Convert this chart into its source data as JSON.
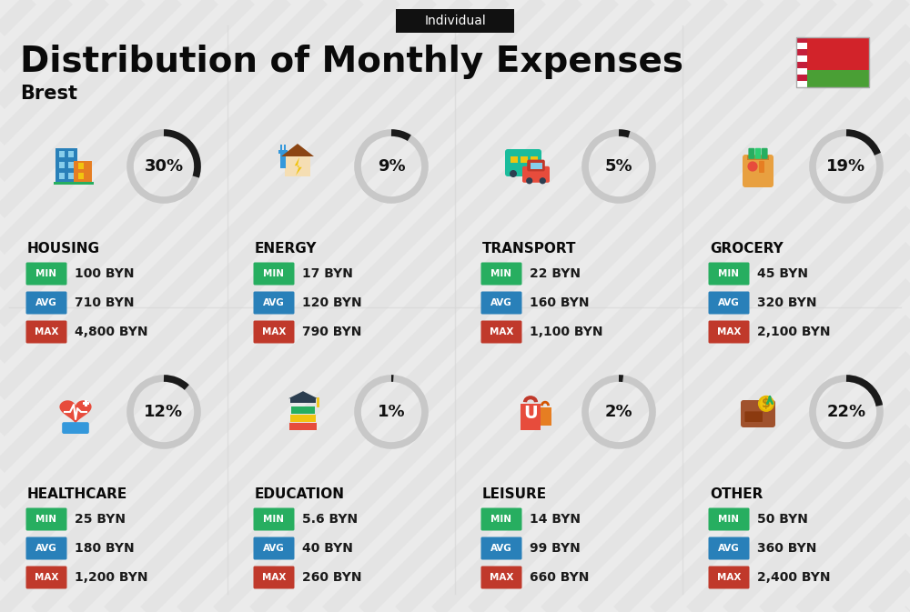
{
  "title": "Distribution of Monthly Expenses",
  "subtitle": "Brest",
  "badge": "Individual",
  "bg_color": "#ebebeb",
  "stripe_color": "#e0e0e0",
  "categories": [
    {
      "name": "HOUSING",
      "percent": 30,
      "min": "100 BYN",
      "avg": "710 BYN",
      "max": "4,800 BYN",
      "col": 0,
      "row": 0
    },
    {
      "name": "ENERGY",
      "percent": 9,
      "min": "17 BYN",
      "avg": "120 BYN",
      "max": "790 BYN",
      "col": 1,
      "row": 0
    },
    {
      "name": "TRANSPORT",
      "percent": 5,
      "min": "22 BYN",
      "avg": "160 BYN",
      "max": "1,100 BYN",
      "col": 2,
      "row": 0
    },
    {
      "name": "GROCERY",
      "percent": 19,
      "min": "45 BYN",
      "avg": "320 BYN",
      "max": "2,100 BYN",
      "col": 3,
      "row": 0
    },
    {
      "name": "HEALTHCARE",
      "percent": 12,
      "min": "25 BYN",
      "avg": "180 BYN",
      "max": "1,200 BYN",
      "col": 0,
      "row": 1
    },
    {
      "name": "EDUCATION",
      "percent": 1,
      "min": "5.6 BYN",
      "avg": "40 BYN",
      "max": "260 BYN",
      "col": 1,
      "row": 1
    },
    {
      "name": "LEISURE",
      "percent": 2,
      "min": "14 BYN",
      "avg": "99 BYN",
      "max": "660 BYN",
      "col": 2,
      "row": 1
    },
    {
      "name": "OTHER",
      "percent": 22,
      "min": "50 BYN",
      "avg": "360 BYN",
      "max": "2,400 BYN",
      "col": 3,
      "row": 1
    }
  ],
  "min_color": "#27ae60",
  "avg_color": "#2980b9",
  "max_color": "#c0392b",
  "donut_filled": "#1a1a1a",
  "donut_empty": "#c8c8c8",
  "flag_red": "#d2232a",
  "flag_green": "#4a9f35",
  "header_bg": "#111111",
  "header_text": "#ffffff",
  "title_color": "#0a0a0a",
  "cat_name_color": "#0a0a0a",
  "value_color": "#1a1a1a"
}
